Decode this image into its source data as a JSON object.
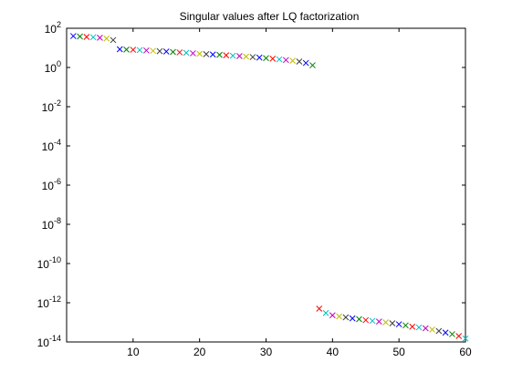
{
  "chart_data": {
    "type": "scatter",
    "title": "Singular values after LQ factorization",
    "xlabel": "",
    "ylabel": "",
    "yscale": "log",
    "xlim": [
      0,
      60
    ],
    "ylim_log10": [
      -14,
      2
    ],
    "grid": false,
    "marker": "x",
    "x_ticks": [
      10,
      20,
      30,
      40,
      50,
      60
    ],
    "x_tick_labels": [
      "10",
      "20",
      "30",
      "40",
      "50",
      "60"
    ],
    "y_ticks_exponents": [
      2,
      0,
      -2,
      -4,
      -6,
      -8,
      -10,
      -12,
      -14
    ],
    "y_tick_base": "10",
    "y_tick_exponent_labels": [
      "2",
      "0",
      "-2",
      "-4",
      "-6",
      "-8",
      "-10",
      "-12",
      "-14"
    ],
    "point_colors": [
      "#0000ff",
      "#008000",
      "#ff0000",
      "#00bfbf",
      "#bf00bf",
      "#bfbf00",
      "#404040"
    ],
    "points": [
      {
        "x": 1,
        "y": 40
      },
      {
        "x": 2,
        "y": 38
      },
      {
        "x": 3,
        "y": 36
      },
      {
        "x": 4,
        "y": 35
      },
      {
        "x": 5,
        "y": 33
      },
      {
        "x": 6,
        "y": 30
      },
      {
        "x": 7,
        "y": 25
      },
      {
        "x": 8,
        "y": 8.5
      },
      {
        "x": 9,
        "y": 8.2
      },
      {
        "x": 10,
        "y": 8.0
      },
      {
        "x": 11,
        "y": 7.7
      },
      {
        "x": 12,
        "y": 7.4
      },
      {
        "x": 13,
        "y": 7.1
      },
      {
        "x": 14,
        "y": 6.8
      },
      {
        "x": 15,
        "y": 6.5
      },
      {
        "x": 16,
        "y": 6.2
      },
      {
        "x": 17,
        "y": 5.9
      },
      {
        "x": 18,
        "y": 5.6
      },
      {
        "x": 19,
        "y": 5.3
      },
      {
        "x": 20,
        "y": 5.0
      },
      {
        "x": 21,
        "y": 4.8
      },
      {
        "x": 22,
        "y": 4.6
      },
      {
        "x": 23,
        "y": 4.4
      },
      {
        "x": 24,
        "y": 4.2
      },
      {
        "x": 25,
        "y": 4.0
      },
      {
        "x": 26,
        "y": 3.8
      },
      {
        "x": 27,
        "y": 3.6
      },
      {
        "x": 28,
        "y": 3.4
      },
      {
        "x": 29,
        "y": 3.2
      },
      {
        "x": 30,
        "y": 3.0
      },
      {
        "x": 31,
        "y": 2.8
      },
      {
        "x": 32,
        "y": 2.6
      },
      {
        "x": 33,
        "y": 2.4
      },
      {
        "x": 34,
        "y": 2.2
      },
      {
        "x": 35,
        "y": 2.0
      },
      {
        "x": 36,
        "y": 1.7
      },
      {
        "x": 37,
        "y": 1.3
      },
      {
        "x": 38,
        "y": 5e-13
      },
      {
        "x": 39,
        "y": 3e-13
      },
      {
        "x": 40,
        "y": 2.3e-13
      },
      {
        "x": 41,
        "y": 2e-13
      },
      {
        "x": 42,
        "y": 1.8e-13
      },
      {
        "x": 43,
        "y": 1.6e-13
      },
      {
        "x": 44,
        "y": 1.45e-13
      },
      {
        "x": 45,
        "y": 1.3e-13
      },
      {
        "x": 46,
        "y": 1.2e-13
      },
      {
        "x": 47,
        "y": 1.1e-13
      },
      {
        "x": 48,
        "y": 1e-13
      },
      {
        "x": 49,
        "y": 9e-14
      },
      {
        "x": 50,
        "y": 8e-14
      },
      {
        "x": 51,
        "y": 7e-14
      },
      {
        "x": 52,
        "y": 6e-14
      },
      {
        "x": 53,
        "y": 5.5e-14
      },
      {
        "x": 54,
        "y": 5e-14
      },
      {
        "x": 55,
        "y": 4.3e-14
      },
      {
        "x": 56,
        "y": 3.6e-14
      },
      {
        "x": 57,
        "y": 3e-14
      },
      {
        "x": 58,
        "y": 2.5e-14
      },
      {
        "x": 59,
        "y": 2e-14
      },
      {
        "x": 60,
        "y": 1.5e-14
      }
    ]
  }
}
